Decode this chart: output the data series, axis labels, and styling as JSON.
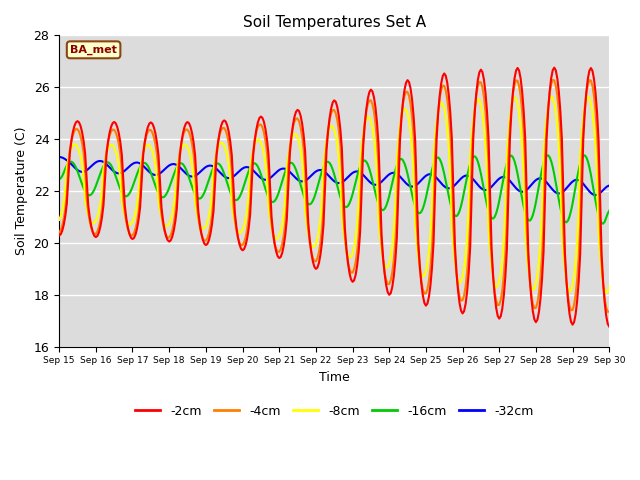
{
  "title": "Soil Temperatures Set A",
  "xlabel": "Time",
  "ylabel": "Soil Temperature (C)",
  "ylim": [
    16,
    28
  ],
  "xlim_days": [
    0,
    15
  ],
  "label_text": "BA_met",
  "background_color": "#dcdcdc",
  "figure_bg": "#ffffff",
  "series_colors": {
    "-2cm": "#ff0000",
    "-4cm": "#ff8000",
    "-8cm": "#ffff00",
    "-16cm": "#00cc00",
    "-32cm": "#0000ff"
  },
  "xtick_labels": [
    "Sep 15",
    "Sep 16",
    "Sep 17",
    "Sep 18",
    "Sep 19",
    "Sep 20",
    "Sep 21",
    "Sep 22",
    "Sep 23",
    "Sep 24",
    "Sep 25",
    "Sep 26",
    "Sep 27",
    "Sep 28",
    "Sep 29",
    "Sep 30"
  ],
  "ytick_values": [
    16,
    18,
    20,
    22,
    24,
    26,
    28
  ],
  "legend_entries": [
    "-2cm",
    "-4cm",
    "-8cm",
    "-16cm",
    "-32cm"
  ],
  "legend_colors": [
    "#ff0000",
    "#ff8000",
    "#ffff00",
    "#00cc00",
    "#0000ff"
  ]
}
